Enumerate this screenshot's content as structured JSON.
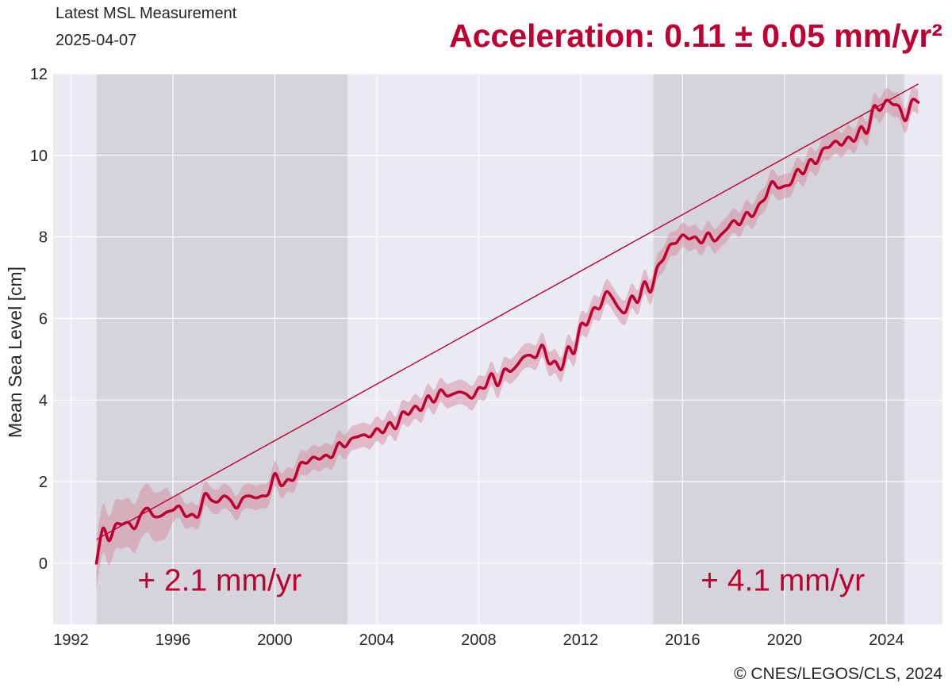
{
  "header": {
    "subtitle_line1": "Latest MSL Measurement",
    "subtitle_line2": "2025-04-07",
    "acceleration": "Acceleration: 0.11 ± 0.05 mm/yr²"
  },
  "footer": {
    "copyright": "© CNES/LEGOS/CLS, 2024"
  },
  "colors": {
    "accent": "#bd0031",
    "band": "#d88aa0",
    "plot_bg": "#eaeaf2",
    "shade": "#d3d3d8",
    "grid": "#ffffff"
  },
  "chart_data": {
    "type": "line",
    "title": "Acceleration: 0.11 ± 0.05 mm/yr²",
    "xlabel": "",
    "ylabel": "Mean Sea Level [cm]",
    "xlim": [
      1991.3,
      2026.2
    ],
    "ylim": [
      -1.5,
      12
    ],
    "grid": true,
    "xticks": [
      1992,
      1996,
      2000,
      2004,
      2008,
      2012,
      2016,
      2020,
      2024
    ],
    "xtick_labels": [
      "1992",
      "1996",
      "2000",
      "2004",
      "2008",
      "2012",
      "2016",
      "2020",
      "2024"
    ],
    "yticks": [
      0,
      2,
      4,
      6,
      8,
      10,
      12
    ],
    "ytick_labels": [
      "0",
      "2",
      "4",
      "6",
      "8",
      "10",
      "12"
    ],
    "series": [
      {
        "name": "Mean Sea Level",
        "x": [
          1993.0,
          1993.25,
          1993.5,
          1993.75,
          1994.0,
          1994.25,
          1994.5,
          1994.75,
          1995.0,
          1995.25,
          1995.5,
          1995.75,
          1996.0,
          1996.25,
          1996.5,
          1996.75,
          1997.0,
          1997.25,
          1997.5,
          1997.75,
          1998.0,
          1998.25,
          1998.5,
          1998.75,
          1999.0,
          1999.25,
          1999.5,
          1999.75,
          2000.0,
          2000.25,
          2000.5,
          2000.75,
          2001.0,
          2001.25,
          2001.5,
          2001.75,
          2002.0,
          2002.25,
          2002.5,
          2002.75,
          2003.0,
          2003.25,
          2003.5,
          2003.75,
          2004.0,
          2004.25,
          2004.5,
          2004.75,
          2005.0,
          2005.25,
          2005.5,
          2005.75,
          2006.0,
          2006.25,
          2006.5,
          2006.75,
          2007.0,
          2007.25,
          2007.5,
          2007.75,
          2008.0,
          2008.25,
          2008.5,
          2008.75,
          2009.0,
          2009.25,
          2009.5,
          2009.75,
          2010.0,
          2010.25,
          2010.5,
          2010.75,
          2011.0,
          2011.25,
          2011.5,
          2011.75,
          2012.0,
          2012.25,
          2012.5,
          2012.75,
          2013.0,
          2013.25,
          2013.5,
          2013.75,
          2014.0,
          2014.25,
          2014.5,
          2014.75,
          2015.0,
          2015.25,
          2015.5,
          2015.75,
          2016.0,
          2016.25,
          2016.5,
          2016.75,
          2017.0,
          2017.25,
          2017.5,
          2017.75,
          2018.0,
          2018.25,
          2018.5,
          2018.75,
          2019.0,
          2019.25,
          2019.5,
          2019.75,
          2020.0,
          2020.25,
          2020.5,
          2020.75,
          2021.0,
          2021.25,
          2021.5,
          2021.75,
          2022.0,
          2022.25,
          2022.5,
          2022.75,
          2023.0,
          2023.25,
          2023.5,
          2023.75,
          2024.0,
          2024.25,
          2024.5,
          2024.75,
          2025.0,
          2025.25
        ],
        "y": [
          0.0,
          0.85,
          0.55,
          0.95,
          0.95,
          1.0,
          0.85,
          1.2,
          1.35,
          1.15,
          1.15,
          1.25,
          1.3,
          1.4,
          1.15,
          1.2,
          1.15,
          1.7,
          1.55,
          1.5,
          1.65,
          1.55,
          1.35,
          1.6,
          1.65,
          1.6,
          1.65,
          1.7,
          2.2,
          1.9,
          2.05,
          2.05,
          2.45,
          2.45,
          2.6,
          2.55,
          2.65,
          2.6,
          2.95,
          2.85,
          3.05,
          3.1,
          3.15,
          3.1,
          3.3,
          3.2,
          3.45,
          3.3,
          3.7,
          3.65,
          3.85,
          3.75,
          4.1,
          3.95,
          4.25,
          4.1,
          4.15,
          4.2,
          4.15,
          4.05,
          4.3,
          4.3,
          4.65,
          4.35,
          4.75,
          4.7,
          4.85,
          5.05,
          5.1,
          5.05,
          5.35,
          4.9,
          4.95,
          4.75,
          5.3,
          5.15,
          5.85,
          5.85,
          6.25,
          6.25,
          6.65,
          6.5,
          6.25,
          6.15,
          6.55,
          6.4,
          6.9,
          6.65,
          7.25,
          7.45,
          7.8,
          7.85,
          8.05,
          7.95,
          8.0,
          7.85,
          8.1,
          7.9,
          8.05,
          8.2,
          8.4,
          8.3,
          8.6,
          8.5,
          8.8,
          8.95,
          9.35,
          9.2,
          9.25,
          9.3,
          9.65,
          9.55,
          9.9,
          9.8,
          10.15,
          10.2,
          10.35,
          10.25,
          10.45,
          10.35,
          10.7,
          10.55,
          11.2,
          11.1,
          11.35,
          11.25,
          11.2,
          10.85,
          11.35,
          11.3
        ],
        "uncertainty": 0.3
      },
      {
        "name": "Quadratic trend",
        "x": [
          1993.0,
          2025.25
        ],
        "y": [
          0.58,
          11.75
        ]
      }
    ],
    "shaded_periods": [
      {
        "x_start": 1993.0,
        "x_end": 2002.85,
        "label": "+ 2.1 mm/yr"
      },
      {
        "x_start": 2014.85,
        "x_end": 2024.7,
        "label": "+ 4.1 mm/yr"
      }
    ]
  }
}
